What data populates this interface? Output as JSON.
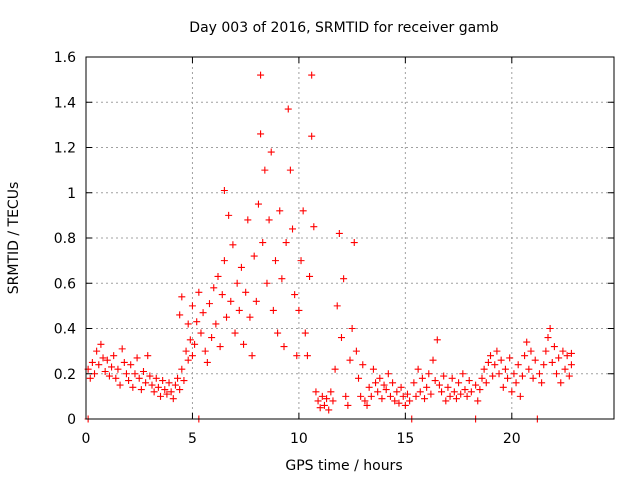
{
  "chart_data": {
    "type": "scatter",
    "title": "Day 003 of 2016, SRMTID for receiver gamb",
    "xlabel": "GPS time / hours",
    "ylabel": "SRMTID / TECUs",
    "xlim": [
      0,
      24.8
    ],
    "ylim": [
      0,
      1.6
    ],
    "x_ticks": [
      0,
      5,
      10,
      15,
      20
    ],
    "x_tick_labels": [
      "0",
      "5",
      "10",
      "15",
      "20"
    ],
    "y_ticks": [
      0,
      0.2,
      0.4,
      0.6,
      0.8,
      1.0,
      1.2,
      1.4,
      1.6
    ],
    "y_tick_labels": [
      "0",
      "0.2",
      "0.4",
      "0.6",
      "0.8",
      "1",
      "1.2",
      "1.4",
      "1.6"
    ],
    "grid": true,
    "marker": "+",
    "color": "#ff0000",
    "series": [
      {
        "name": "SRMTID",
        "points": [
          [
            0.1,
            0.0
          ],
          [
            0.1,
            0.22
          ],
          [
            0.2,
            0.18
          ],
          [
            0.3,
            0.25
          ],
          [
            0.4,
            0.2
          ],
          [
            0.5,
            0.3
          ],
          [
            0.6,
            0.24
          ],
          [
            0.7,
            0.33
          ],
          [
            0.8,
            0.27
          ],
          [
            0.9,
            0.21
          ],
          [
            1.0,
            0.26
          ],
          [
            1.1,
            0.19
          ],
          [
            1.2,
            0.23
          ],
          [
            1.3,
            0.28
          ],
          [
            1.4,
            0.18
          ],
          [
            1.5,
            0.22
          ],
          [
            1.6,
            0.15
          ],
          [
            1.7,
            0.31
          ],
          [
            1.8,
            0.25
          ],
          [
            1.9,
            0.2
          ],
          [
            2.0,
            0.17
          ],
          [
            2.1,
            0.24
          ],
          [
            2.2,
            0.14
          ],
          [
            2.3,
            0.2
          ],
          [
            2.4,
            0.27
          ],
          [
            2.5,
            0.18
          ],
          [
            2.6,
            0.13
          ],
          [
            2.7,
            0.21
          ],
          [
            2.8,
            0.16
          ],
          [
            2.9,
            0.28
          ],
          [
            3.0,
            0.19
          ],
          [
            3.1,
            0.15
          ],
          [
            3.2,
            0.12
          ],
          [
            3.3,
            0.18
          ],
          [
            3.4,
            0.14
          ],
          [
            3.5,
            0.1
          ],
          [
            3.6,
            0.17
          ],
          [
            3.7,
            0.13
          ],
          [
            3.8,
            0.11
          ],
          [
            3.9,
            0.16
          ],
          [
            4.0,
            0.12
          ],
          [
            4.1,
            0.09
          ],
          [
            4.2,
            0.15
          ],
          [
            4.3,
            0.18
          ],
          [
            4.4,
            0.13
          ],
          [
            4.5,
            0.22
          ],
          [
            4.6,
            0.17
          ],
          [
            4.7,
            0.3
          ],
          [
            4.8,
            0.26
          ],
          [
            4.9,
            0.35
          ],
          [
            5.0,
            0.28
          ],
          [
            4.4,
            0.46
          ],
          [
            4.5,
            0.54
          ],
          [
            4.8,
            0.42
          ],
          [
            5.0,
            0.5
          ],
          [
            5.1,
            0.33
          ],
          [
            5.2,
            0.43
          ],
          [
            5.3,
            0.0
          ],
          [
            5.3,
            0.56
          ],
          [
            5.4,
            0.38
          ],
          [
            5.5,
            0.47
          ],
          [
            5.6,
            0.3
          ],
          [
            5.7,
            0.25
          ],
          [
            5.8,
            0.51
          ],
          [
            5.9,
            0.36
          ],
          [
            6.0,
            0.58
          ],
          [
            6.1,
            0.42
          ],
          [
            6.2,
            0.63
          ],
          [
            6.3,
            0.32
          ],
          [
            6.4,
            0.55
          ],
          [
            6.5,
            0.7
          ],
          [
            6.5,
            1.01
          ],
          [
            6.6,
            0.45
          ],
          [
            6.7,
            0.9
          ],
          [
            6.8,
            0.52
          ],
          [
            6.9,
            0.77
          ],
          [
            7.0,
            0.38
          ],
          [
            7.1,
            0.6
          ],
          [
            7.2,
            0.48
          ],
          [
            7.3,
            0.67
          ],
          [
            7.4,
            0.33
          ],
          [
            7.5,
            0.56
          ],
          [
            7.6,
            0.88
          ],
          [
            7.7,
            0.45
          ],
          [
            7.8,
            0.28
          ],
          [
            7.9,
            0.72
          ],
          [
            8.0,
            0.52
          ],
          [
            8.1,
            0.95
          ],
          [
            8.2,
            1.52
          ],
          [
            8.2,
            1.26
          ],
          [
            8.3,
            0.78
          ],
          [
            8.4,
            1.1
          ],
          [
            8.5,
            0.6
          ],
          [
            8.6,
            0.88
          ],
          [
            8.7,
            1.18
          ],
          [
            8.8,
            0.48
          ],
          [
            8.9,
            0.7
          ],
          [
            9.0,
            0.38
          ],
          [
            9.1,
            0.92
          ],
          [
            9.2,
            0.62
          ],
          [
            9.3,
            0.32
          ],
          [
            9.4,
            0.78
          ],
          [
            9.5,
            1.37
          ],
          [
            9.6,
            1.1
          ],
          [
            9.7,
            0.84
          ],
          [
            9.8,
            0.55
          ],
          [
            9.9,
            0.28
          ],
          [
            10.0,
            0.48
          ],
          [
            10.1,
            0.7
          ],
          [
            10.2,
            0.92
          ],
          [
            10.3,
            0.38
          ],
          [
            10.4,
            0.28
          ],
          [
            10.5,
            0.63
          ],
          [
            10.6,
            1.52
          ],
          [
            10.6,
            1.25
          ],
          [
            10.7,
            0.85
          ],
          [
            10.8,
            0.12
          ],
          [
            10.9,
            0.08
          ],
          [
            11.0,
            0.05
          ],
          [
            11.1,
            0.1
          ],
          [
            11.2,
            0.06
          ],
          [
            11.3,
            0.09
          ],
          [
            11.4,
            0.04
          ],
          [
            11.5,
            0.12
          ],
          [
            11.6,
            0.08
          ],
          [
            11.7,
            0.22
          ],
          [
            11.8,
            0.5
          ],
          [
            11.9,
            0.82
          ],
          [
            12.0,
            0.36
          ],
          [
            12.1,
            0.62
          ],
          [
            12.2,
            0.1
          ],
          [
            12.3,
            0.06
          ],
          [
            12.4,
            0.26
          ],
          [
            12.5,
            0.4
          ],
          [
            12.6,
            0.78
          ],
          [
            12.7,
            0.3
          ],
          [
            12.8,
            0.18
          ],
          [
            12.9,
            0.1
          ],
          [
            13.0,
            0.24
          ],
          [
            13.1,
            0.08
          ],
          [
            13.2,
            0.06
          ],
          [
            13.3,
            0.14
          ],
          [
            13.4,
            0.1
          ],
          [
            13.5,
            0.22
          ],
          [
            13.6,
            0.16
          ],
          [
            13.7,
            0.12
          ],
          [
            13.8,
            0.18
          ],
          [
            13.9,
            0.09
          ],
          [
            14.0,
            0.15
          ],
          [
            14.1,
            0.13
          ],
          [
            14.2,
            0.2
          ],
          [
            14.3,
            0.1
          ],
          [
            14.4,
            0.16
          ],
          [
            14.5,
            0.08
          ],
          [
            14.6,
            0.12
          ],
          [
            14.7,
            0.07
          ],
          [
            14.8,
            0.14
          ],
          [
            14.9,
            0.1
          ],
          [
            15.0,
            0.06
          ],
          [
            15.1,
            0.11
          ],
          [
            15.2,
            0.08
          ],
          [
            15.3,
            0.0
          ],
          [
            15.4,
            0.16
          ],
          [
            15.5,
            0.1
          ],
          [
            15.6,
            0.22
          ],
          [
            15.7,
            0.12
          ],
          [
            15.8,
            0.18
          ],
          [
            15.9,
            0.09
          ],
          [
            16.0,
            0.14
          ],
          [
            16.1,
            0.2
          ],
          [
            16.2,
            0.11
          ],
          [
            16.3,
            0.26
          ],
          [
            16.4,
            0.17
          ],
          [
            16.5,
            0.35
          ],
          [
            16.6,
            0.15
          ],
          [
            16.7,
            0.12
          ],
          [
            16.8,
            0.19
          ],
          [
            16.9,
            0.08
          ],
          [
            17.0,
            0.14
          ],
          [
            17.1,
            0.1
          ],
          [
            17.2,
            0.18
          ],
          [
            17.3,
            0.12
          ],
          [
            17.4,
            0.09
          ],
          [
            17.5,
            0.16
          ],
          [
            17.6,
            0.11
          ],
          [
            17.7,
            0.2
          ],
          [
            17.8,
            0.13
          ],
          [
            17.9,
            0.1
          ],
          [
            18.0,
            0.17
          ],
          [
            18.1,
            0.12
          ],
          [
            18.3,
            0.0
          ],
          [
            18.3,
            0.15
          ],
          [
            18.4,
            0.08
          ],
          [
            18.5,
            0.13
          ],
          [
            18.6,
            0.18
          ],
          [
            18.7,
            0.22
          ],
          [
            18.8,
            0.16
          ],
          [
            18.9,
            0.25
          ],
          [
            19.0,
            0.28
          ],
          [
            19.1,
            0.19
          ],
          [
            19.2,
            0.24
          ],
          [
            19.3,
            0.3
          ],
          [
            19.4,
            0.2
          ],
          [
            19.5,
            0.26
          ],
          [
            19.6,
            0.14
          ],
          [
            19.7,
            0.22
          ],
          [
            19.8,
            0.18
          ],
          [
            19.9,
            0.27
          ],
          [
            20.0,
            0.12
          ],
          [
            20.1,
            0.2
          ],
          [
            20.2,
            0.16
          ],
          [
            20.3,
            0.24
          ],
          [
            20.4,
            0.1
          ],
          [
            20.5,
            0.19
          ],
          [
            20.6,
            0.28
          ],
          [
            20.7,
            0.34
          ],
          [
            20.8,
            0.22
          ],
          [
            20.9,
            0.3
          ],
          [
            21.0,
            0.18
          ],
          [
            21.1,
            0.26
          ],
          [
            21.2,
            0.0
          ],
          [
            21.3,
            0.2
          ],
          [
            21.4,
            0.16
          ],
          [
            21.5,
            0.24
          ],
          [
            21.6,
            0.3
          ],
          [
            21.7,
            0.36
          ],
          [
            21.8,
            0.4
          ],
          [
            21.9,
            0.25
          ],
          [
            22.0,
            0.32
          ],
          [
            22.1,
            0.2
          ],
          [
            22.2,
            0.27
          ],
          [
            22.3,
            0.16
          ],
          [
            22.4,
            0.3
          ],
          [
            22.5,
            0.22
          ],
          [
            22.6,
            0.28
          ],
          [
            22.7,
            0.19
          ],
          [
            22.8,
            0.24
          ],
          [
            22.8,
            0.29
          ]
        ]
      }
    ]
  }
}
